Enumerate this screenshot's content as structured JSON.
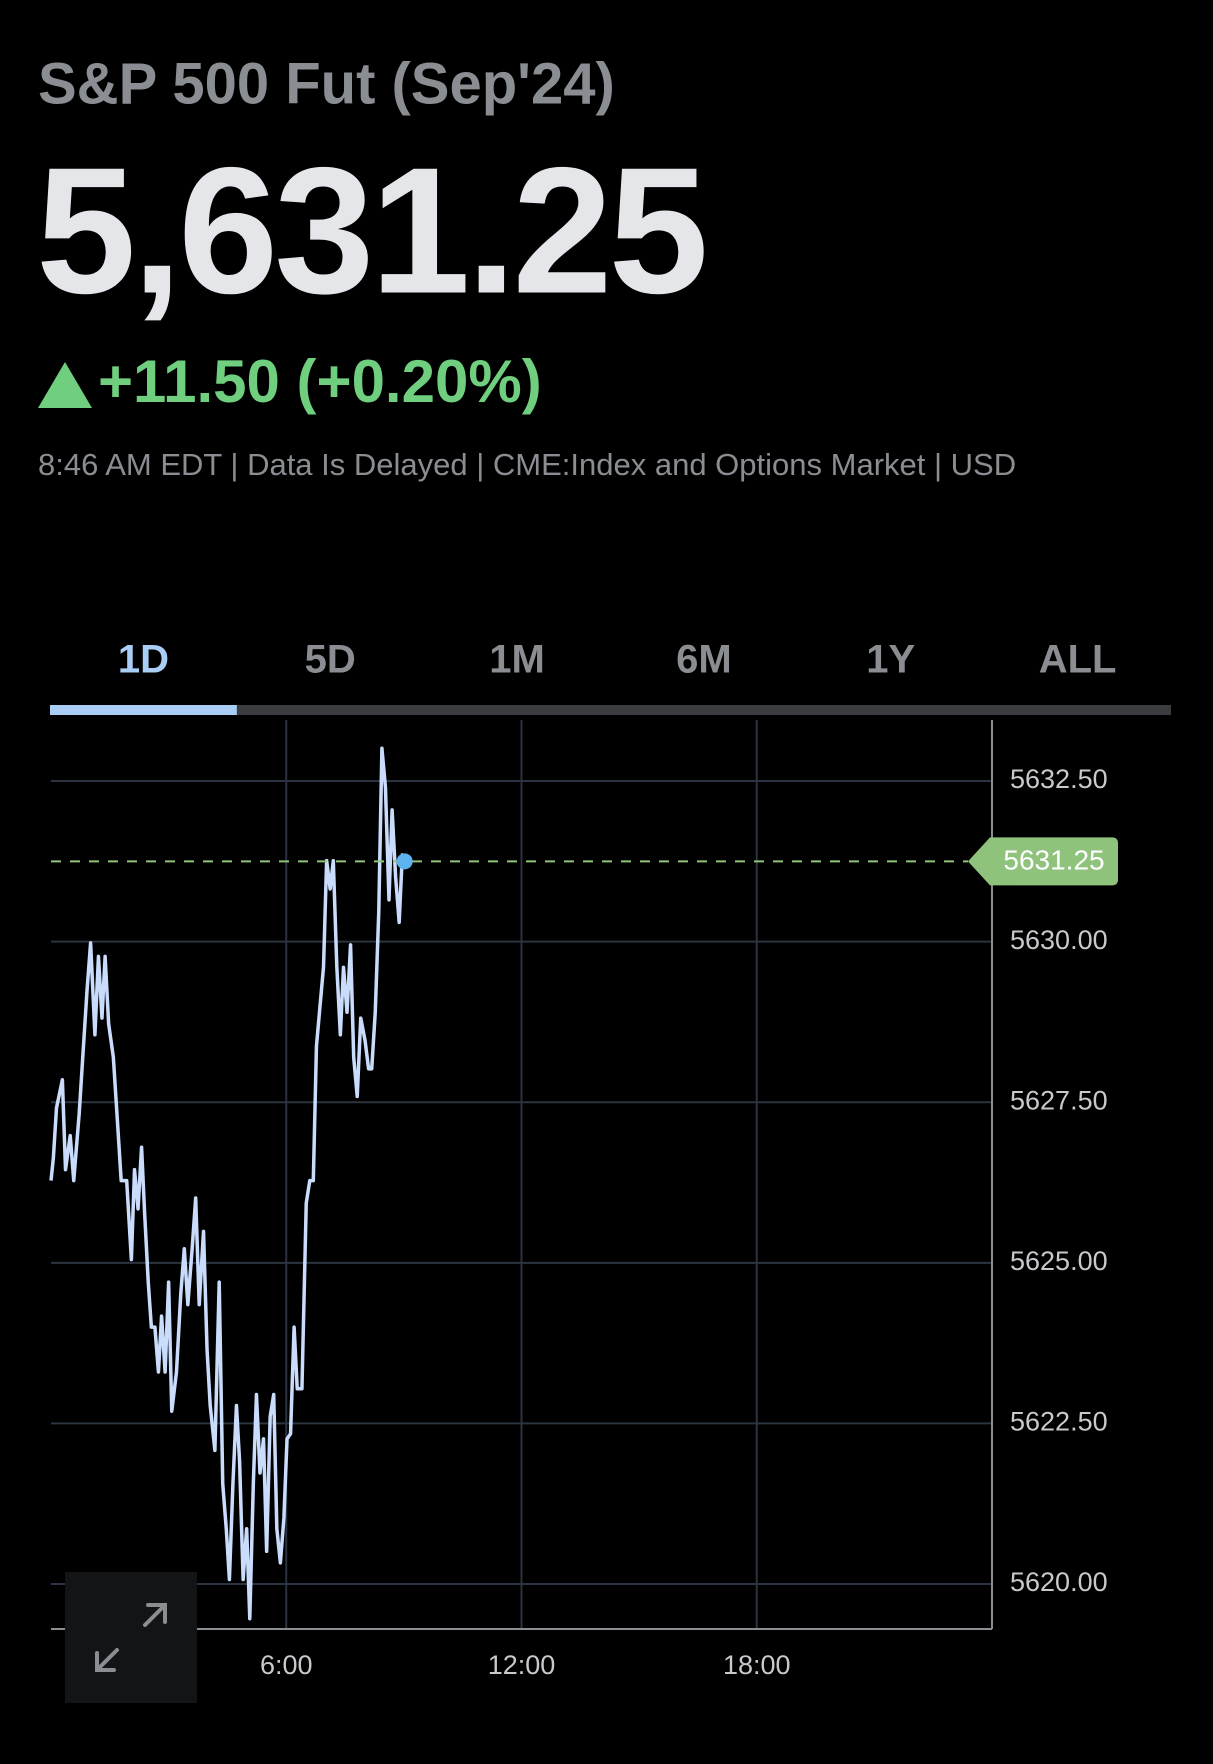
{
  "header": {
    "title": "S&P 500 Fut (Sep'24)",
    "price": "5,631.25",
    "change": "+11.50 (+0.20%)",
    "meta": "8:46 AM EDT | Data Is Delayed | CME:Index and Options Market | USD"
  },
  "tabs": {
    "items": [
      "1D",
      "5D",
      "1M",
      "6M",
      "1Y",
      "ALL"
    ],
    "active": "1D"
  },
  "chart_data": {
    "type": "line",
    "color": "#c9dcfb",
    "marker_color": "#5db3f0",
    "grid": true,
    "current_price": 5631.25,
    "current_price_color": "#8fc37c",
    "xlim": [
      0,
      24
    ],
    "xticks": [
      {
        "value": 6,
        "label": "6:00"
      },
      {
        "value": 12,
        "label": "12:00"
      },
      {
        "value": 18,
        "label": "18:00"
      }
    ],
    "ylim": [
      5619.3,
      5633.45
    ],
    "yticks": [
      {
        "value": 5620,
        "label": "5620.00"
      },
      {
        "value": 5622.5,
        "label": "5622.50"
      },
      {
        "value": 5625,
        "label": "5625.00"
      },
      {
        "value": 5627.5,
        "label": "5627.50"
      },
      {
        "value": 5630,
        "label": "5630.00"
      },
      {
        "value": 5632.5,
        "label": "5632.50"
      }
    ],
    "x": [
      0,
      0.06,
      0.14,
      0.29,
      0.37,
      0.49,
      0.58,
      0.72,
      0.81,
      0.92,
      1.01,
      1.12,
      1.21,
      1.3,
      1.38,
      1.47,
      1.59,
      1.7,
      1.79,
      1.93,
      2.05,
      2.13,
      2.22,
      2.31,
      2.39,
      2.48,
      2.56,
      2.65,
      2.74,
      2.82,
      2.91,
      3.0,
      3.08,
      3.2,
      3.31,
      3.4,
      3.49,
      3.6,
      3.69,
      3.78,
      3.89,
      3.98,
      4.06,
      4.18,
      4.29,
      4.38,
      4.47,
      4.55,
      4.64,
      4.73,
      4.81,
      4.9,
      4.99,
      5.07,
      5.16,
      5.24,
      5.33,
      5.42,
      5.5,
      5.59,
      5.68,
      5.76,
      5.85,
      5.94,
      6.02,
      6.11,
      6.2,
      6.28,
      6.4,
      6.51,
      6.6,
      6.69,
      6.77,
      6.86,
      6.95,
      7.03,
      7.12,
      7.2,
      7.29,
      7.38,
      7.46,
      7.55,
      7.64,
      7.72,
      7.81,
      7.9,
      8.01,
      8.1,
      8.18,
      8.27,
      8.36,
      8.44,
      8.53,
      8.62,
      8.7,
      8.79,
      8.88,
      8.96,
      9.02
    ],
    "values": [
      5626.28,
      5626.63,
      5627.41,
      5627.85,
      5626.45,
      5626.98,
      5626.28,
      5627.33,
      5628.2,
      5629.25,
      5629.98,
      5628.55,
      5629.77,
      5628.81,
      5629.77,
      5628.72,
      5628.2,
      5627.15,
      5626.28,
      5626.28,
      5625.05,
      5626.45,
      5625.84,
      5626.8,
      5625.75,
      5624.7,
      5624.0,
      5624.0,
      5623.3,
      5624.17,
      5623.3,
      5624.7,
      5622.69,
      5623.3,
      5624.52,
      5625.22,
      5624.35,
      5625.22,
      5626.01,
      5624.35,
      5625.49,
      5623.65,
      5622.78,
      5622.08,
      5624.7,
      5621.56,
      5620.86,
      5620.07,
      5621.56,
      5622.78,
      5621.91,
      5620.07,
      5620.86,
      5619.46,
      5621.56,
      5622.95,
      5621.73,
      5622.26,
      5620.51,
      5622.61,
      5622.95,
      5620.86,
      5620.33,
      5621.03,
      5622.26,
      5622.34,
      5624.0,
      5623.04,
      5623.04,
      5625.93,
      5626.28,
      5626.28,
      5628.37,
      5628.99,
      5629.6,
      5631.26,
      5630.82,
      5631.26,
      5629.6,
      5628.55,
      5629.6,
      5628.9,
      5629.95,
      5628.2,
      5627.59,
      5628.81,
      5628.46,
      5628.02,
      5628.02,
      5628.9,
      5630.47,
      5633.01,
      5632.4,
      5630.65,
      5632.05,
      5631.0,
      5630.3,
      5631.35,
      5631.25
    ]
  }
}
